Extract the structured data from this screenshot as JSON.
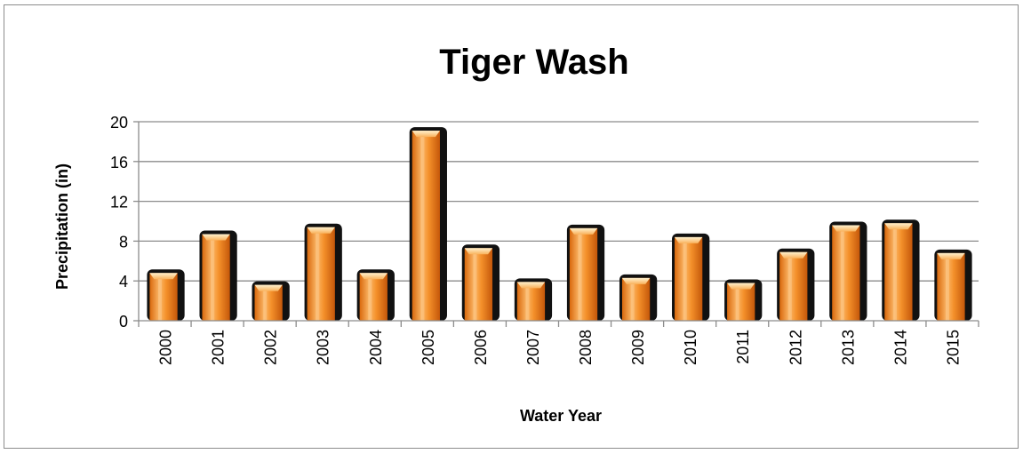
{
  "chart_data": {
    "type": "bar",
    "title": "Tiger Wash",
    "xlabel": "Water Year",
    "ylabel": "Precipitation (in)",
    "ylim": [
      0,
      20
    ],
    "yticks": [
      0,
      4,
      8,
      12,
      16,
      20
    ],
    "grid": true,
    "legend": "none",
    "categories": [
      "2000",
      "2001",
      "2002",
      "2003",
      "2004",
      "2005",
      "2006",
      "2007",
      "2008",
      "2009",
      "2010",
      "2011",
      "2012",
      "2013",
      "2014",
      "2015"
    ],
    "values": [
      4.8,
      8.7,
      3.6,
      9.4,
      4.8,
      19.1,
      7.3,
      3.9,
      9.3,
      4.3,
      8.4,
      3.8,
      6.9,
      9.6,
      9.8,
      6.8
    ],
    "colors": {
      "bar": "#f4902a",
      "bar_highlight": "#fde0a8",
      "bar_shadow": "#111111",
      "grid": "#8c8c8c"
    }
  }
}
